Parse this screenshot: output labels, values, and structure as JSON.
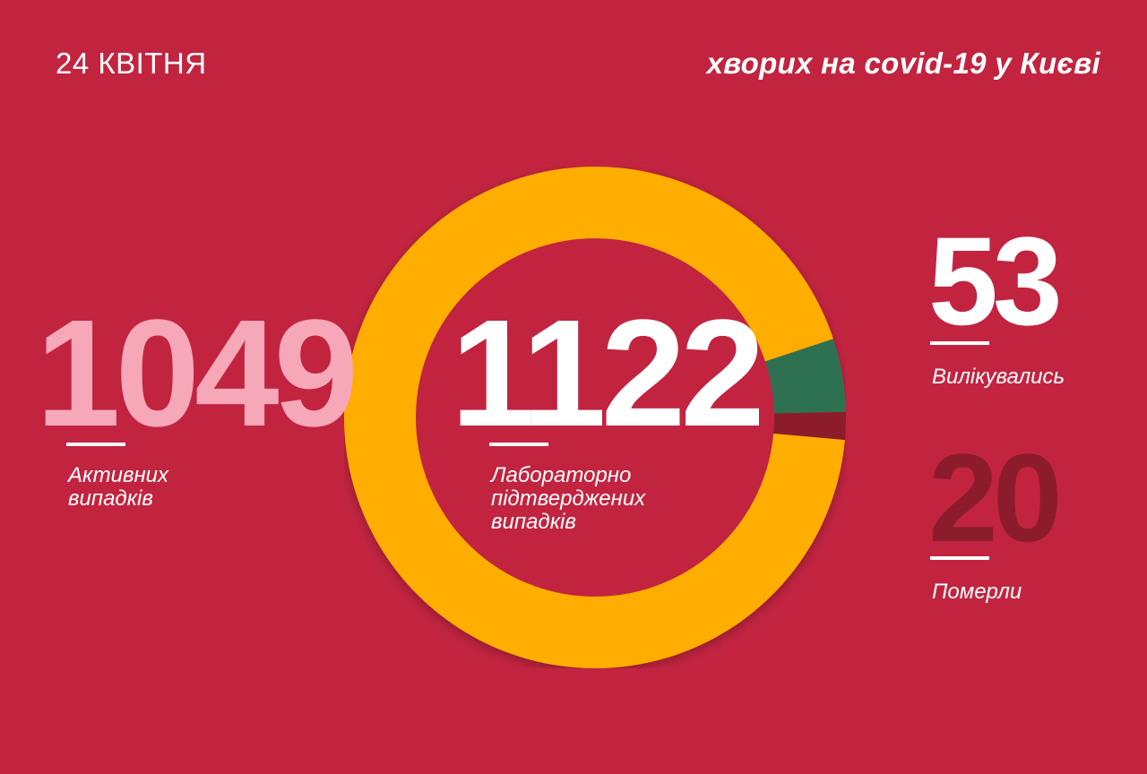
{
  "header": {
    "date": "24 КВІТНЯ",
    "title": "хворих на covid-19 у Києві"
  },
  "stats": {
    "active": {
      "value": "1049",
      "label": "Активних\nвипадків"
    },
    "confirmed": {
      "value": "1122",
      "label": "Лабораторно\nпідтверджених\nвипадків"
    },
    "recovered": {
      "value": "53",
      "label": "Вилікувались"
    },
    "deaths": {
      "value": "20",
      "label": "Померли"
    }
  },
  "colors": {
    "background": "#c22440",
    "active": "#ffae00",
    "recovered": "#2e7151",
    "deaths": "#8c1c2c",
    "active_number": "#f7a8b8",
    "deaths_number": "#8c1c2c"
  },
  "chart_data": {
    "type": "pie",
    "donut": true,
    "total": 1122,
    "slices": [
      {
        "name": "Активних випадків",
        "value": 1049,
        "color": "#ffae00"
      },
      {
        "name": "Вилікувались",
        "value": 53,
        "color": "#2e7151"
      },
      {
        "name": "Померли",
        "value": 20,
        "color": "#8c1c2c"
      }
    ]
  }
}
